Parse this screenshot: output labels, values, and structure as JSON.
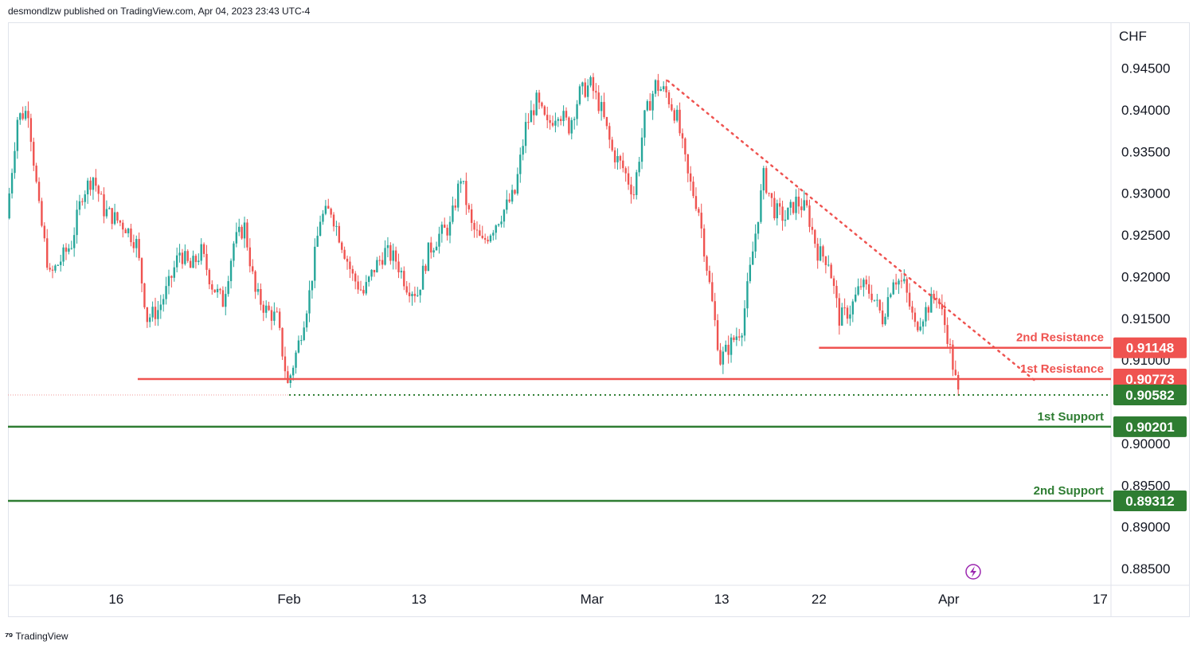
{
  "header": {
    "published": "desmondlzw published on TradingView.com, Apr 04, 2023 23:43 UTC-4"
  },
  "footer": {
    "brand": "TradingView"
  },
  "colors": {
    "up": "#26a69a",
    "green": "#2e7d32",
    "red": "#ef5350",
    "down": "#ef5350",
    "accent": "#9c27b0"
  },
  "chart_data": {
    "type": "candlestick",
    "currency": "CHF",
    "ylim": [
      0.883,
      0.9505
    ],
    "y_ticks": [
      "0.94500",
      "0.94000",
      "0.93500",
      "0.93000",
      "0.92500",
      "0.92000",
      "0.91500",
      "0.91000",
      "0.90000",
      "0.89500",
      "0.89000",
      "0.88500"
    ],
    "x_ticks": [
      {
        "label": "16",
        "date": "2023-01-16"
      },
      {
        "label": "Feb",
        "date": "2023-02-01"
      },
      {
        "label": "13",
        "date": "2023-02-13"
      },
      {
        "label": "Mar",
        "date": "2023-03-01"
      },
      {
        "label": "13",
        "date": "2023-03-13"
      },
      {
        "label": "22",
        "date": "2023-03-22"
      },
      {
        "label": "Apr",
        "date": "2023-04-03"
      },
      {
        "label": "17",
        "date": "2023-04-17"
      }
    ],
    "x_range": [
      "2023-01-06",
      "2023-04-18"
    ],
    "price_path": [
      {
        "date": "2023-01-06",
        "price": 0.927
      },
      {
        "date": "2023-01-07",
        "price": 0.939
      },
      {
        "date": "2023-01-08",
        "price": 0.94
      },
      {
        "date": "2023-01-09",
        "price": 0.928
      },
      {
        "date": "2023-01-10",
        "price": 0.92
      },
      {
        "date": "2023-01-11",
        "price": 0.922
      },
      {
        "date": "2023-01-12",
        "price": 0.924
      },
      {
        "date": "2023-01-13",
        "price": 0.93
      },
      {
        "date": "2023-01-14",
        "price": 0.932
      },
      {
        "date": "2023-01-15",
        "price": 0.928
      },
      {
        "date": "2023-01-16",
        "price": 0.927
      },
      {
        "date": "2023-01-17",
        "price": 0.926
      },
      {
        "date": "2023-01-18",
        "price": 0.924
      },
      {
        "date": "2023-01-19",
        "price": 0.915
      },
      {
        "date": "2023-01-20",
        "price": 0.916
      },
      {
        "date": "2023-01-21",
        "price": 0.919
      },
      {
        "date": "2023-01-22",
        "price": 0.923
      },
      {
        "date": "2023-01-23",
        "price": 0.921
      },
      {
        "date": "2023-01-24",
        "price": 0.923
      },
      {
        "date": "2023-01-25",
        "price": 0.919
      },
      {
        "date": "2023-01-26",
        "price": 0.917
      },
      {
        "date": "2023-01-27",
        "price": 0.924
      },
      {
        "date": "2023-01-28",
        "price": 0.926
      },
      {
        "date": "2023-01-29",
        "price": 0.918
      },
      {
        "date": "2023-01-30",
        "price": 0.916
      },
      {
        "date": "2023-01-31",
        "price": 0.915
      },
      {
        "date": "2023-02-01",
        "price": 0.907
      },
      {
        "date": "2023-02-02",
        "price": 0.912
      },
      {
        "date": "2023-02-03",
        "price": 0.918
      },
      {
        "date": "2023-02-04",
        "price": 0.927
      },
      {
        "date": "2023-02-05",
        "price": 0.928
      },
      {
        "date": "2023-02-06",
        "price": 0.924
      },
      {
        "date": "2023-02-07",
        "price": 0.92
      },
      {
        "date": "2023-02-08",
        "price": 0.918
      },
      {
        "date": "2023-02-09",
        "price": 0.921
      },
      {
        "date": "2023-02-10",
        "price": 0.923
      },
      {
        "date": "2023-02-11",
        "price": 0.922
      },
      {
        "date": "2023-02-12",
        "price": 0.919
      },
      {
        "date": "2023-02-13",
        "price": 0.918
      },
      {
        "date": "2023-02-14",
        "price": 0.923
      },
      {
        "date": "2023-02-15",
        "price": 0.925
      },
      {
        "date": "2023-02-16",
        "price": 0.926
      },
      {
        "date": "2023-02-17",
        "price": 0.932
      },
      {
        "date": "2023-02-18",
        "price": 0.926
      },
      {
        "date": "2023-02-19",
        "price": 0.924
      },
      {
        "date": "2023-02-20",
        "price": 0.926
      },
      {
        "date": "2023-02-21",
        "price": 0.928
      },
      {
        "date": "2023-02-22",
        "price": 0.93
      },
      {
        "date": "2023-02-23",
        "price": 0.938
      },
      {
        "date": "2023-02-24",
        "price": 0.941
      },
      {
        "date": "2023-02-25",
        "price": 0.938
      },
      {
        "date": "2023-02-26",
        "price": 0.94
      },
      {
        "date": "2023-02-27",
        "price": 0.938
      },
      {
        "date": "2023-02-28",
        "price": 0.942
      },
      {
        "date": "2023-03-01",
        "price": 0.943
      },
      {
        "date": "2023-03-02",
        "price": 0.94
      },
      {
        "date": "2023-03-03",
        "price": 0.935
      },
      {
        "date": "2023-03-04",
        "price": 0.933
      },
      {
        "date": "2023-03-05",
        "price": 0.93
      },
      {
        "date": "2023-03-06",
        "price": 0.939
      },
      {
        "date": "2023-03-07",
        "price": 0.943
      },
      {
        "date": "2023-03-08",
        "price": 0.942
      },
      {
        "date": "2023-03-09",
        "price": 0.939
      },
      {
        "date": "2023-03-10",
        "price": 0.932
      },
      {
        "date": "2023-03-11",
        "price": 0.928
      },
      {
        "date": "2023-03-12",
        "price": 0.919
      },
      {
        "date": "2023-03-13",
        "price": 0.91
      },
      {
        "date": "2023-03-14",
        "price": 0.912
      },
      {
        "date": "2023-03-15",
        "price": 0.914
      },
      {
        "date": "2023-03-16",
        "price": 0.923
      },
      {
        "date": "2023-03-17",
        "price": 0.932
      },
      {
        "date": "2023-03-18",
        "price": 0.928
      },
      {
        "date": "2023-03-19",
        "price": 0.927
      },
      {
        "date": "2023-03-20",
        "price": 0.929
      },
      {
        "date": "2023-03-21",
        "price": 0.928
      },
      {
        "date": "2023-03-22",
        "price": 0.923
      },
      {
        "date": "2023-03-23",
        "price": 0.922
      },
      {
        "date": "2023-03-24",
        "price": 0.915
      },
      {
        "date": "2023-03-25",
        "price": 0.916
      },
      {
        "date": "2023-03-26",
        "price": 0.919
      },
      {
        "date": "2023-03-27",
        "price": 0.918
      },
      {
        "date": "2023-03-28",
        "price": 0.915
      },
      {
        "date": "2023-03-29",
        "price": 0.92
      },
      {
        "date": "2023-03-30",
        "price": 0.919
      },
      {
        "date": "2023-03-31",
        "price": 0.914
      },
      {
        "date": "2023-04-01",
        "price": 0.916
      },
      {
        "date": "2023-04-02",
        "price": 0.918
      },
      {
        "date": "2023-04-03",
        "price": 0.913
      },
      {
        "date": "2023-04-04",
        "price": 0.9058
      }
    ],
    "levels": [
      {
        "id": "resistance-2",
        "label": "2nd Resistance",
        "value": "0.91148",
        "color": "#ef5350",
        "start": "2023-03-22"
      },
      {
        "id": "resistance-1",
        "label": "1st Resistance",
        "value": "0.90773",
        "color": "#ef5350",
        "start": "2023-01-18"
      },
      {
        "id": "current",
        "label": "",
        "value": "0.90582",
        "color": "#2e7d32",
        "start": "2023-02-01"
      },
      {
        "id": "support-1",
        "label": "1st Support",
        "value": "0.90201",
        "color": "#2e7d32",
        "start": "2023-01-06"
      },
      {
        "id": "support-2",
        "label": "2nd Support",
        "value": "0.89312",
        "color": "#2e7d32",
        "start": "2023-01-06"
      }
    ],
    "trendline": {
      "from": {
        "date": "2023-03-08",
        "price": 0.9435
      },
      "to": {
        "date": "2023-04-11",
        "price": 0.9075
      },
      "style": "dotted"
    }
  }
}
